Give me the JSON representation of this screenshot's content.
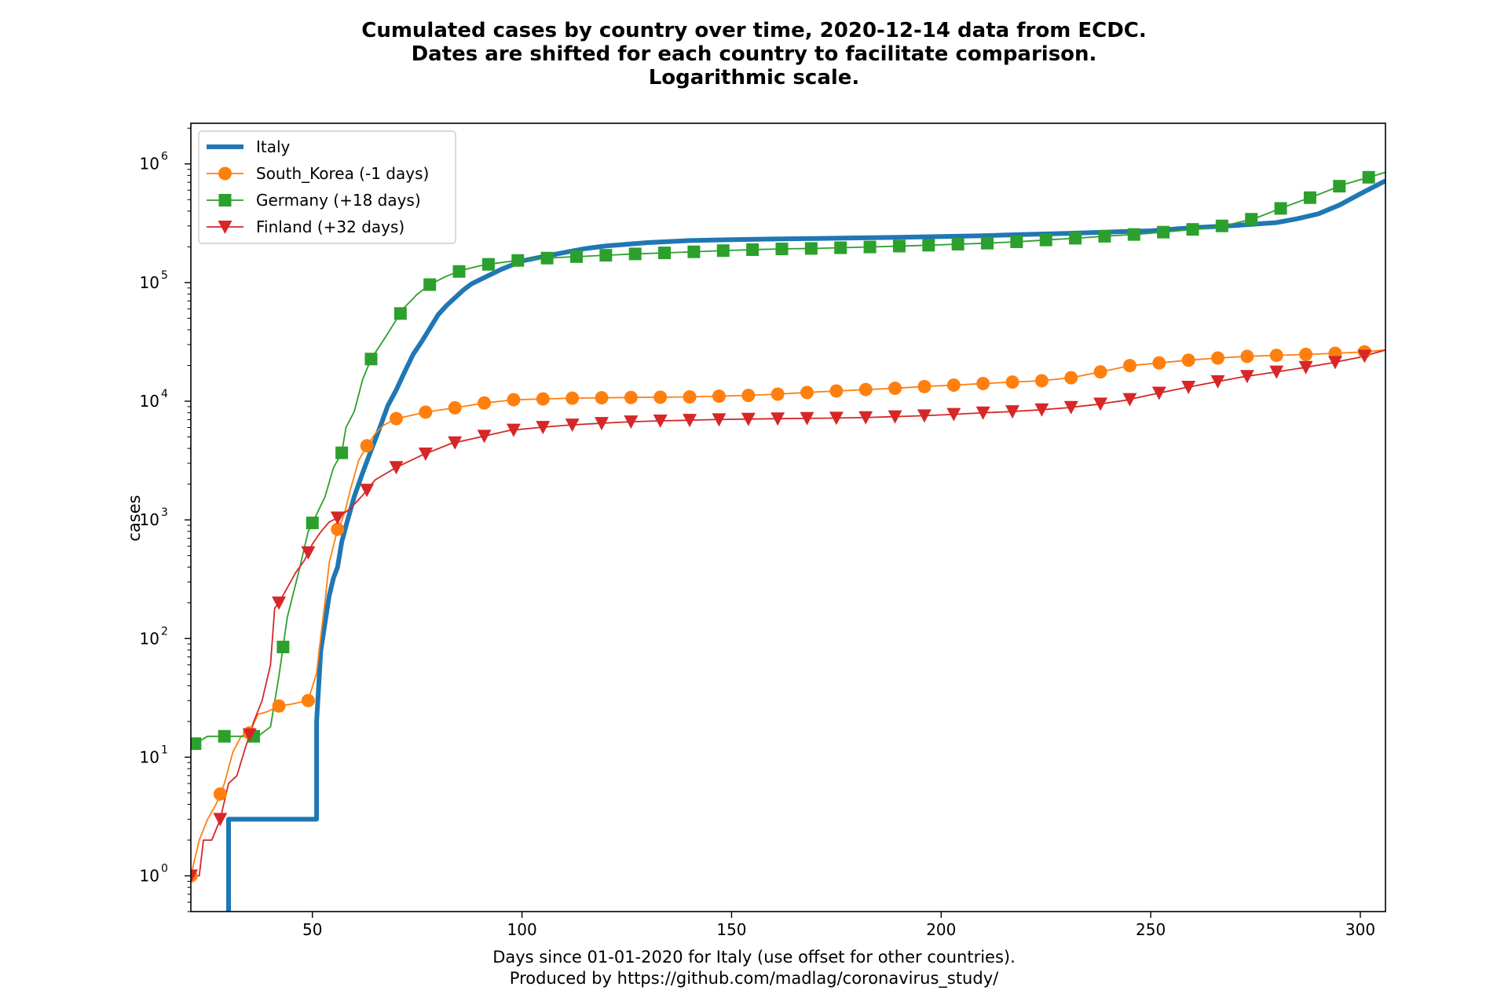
{
  "chart_data": {
    "type": "line",
    "title": "Cumulated cases by country over time, 2020-12-14 data from ECDC.",
    "subtitle": "Dates are shifted for each country to facilitate comparison.",
    "subtitle2": "Logarithmic scale.",
    "xlabel": "Days since 01-01-2020 for Italy (use offset for other countries).",
    "xlabel2": "Produced by https://github.com/madlag/coronavirus_study/",
    "ylabel": "cases",
    "yscale": "log",
    "xlim": [
      21,
      306
    ],
    "ylim": [
      0.5,
      2200000
    ],
    "xticks": [
      50,
      100,
      150,
      200,
      250,
      300
    ],
    "xtick_labels": [
      "50",
      "100",
      "150",
      "200",
      "250",
      "300"
    ],
    "yticks": [
      1,
      10,
      100,
      1000,
      10000,
      100000,
      1000000
    ],
    "ytick_labels": [
      [
        "10",
        "0"
      ],
      [
        "10",
        "1"
      ],
      [
        "10",
        "2"
      ],
      [
        "10",
        "3"
      ],
      [
        "10",
        "4"
      ],
      [
        "10",
        "5"
      ],
      [
        "10",
        "6"
      ]
    ],
    "grid": false,
    "legend_position": "top-left",
    "series": [
      {
        "name": "Italy",
        "color": "#1f77b4",
        "marker": "none",
        "x": [
          30,
          30,
          51,
          51,
          52,
          54,
          55,
          56,
          57,
          58,
          60,
          62,
          64,
          66,
          68,
          70,
          72,
          74,
          76,
          78,
          80,
          82,
          84,
          86,
          88,
          90,
          95,
          100,
          105,
          110,
          115,
          120,
          130,
          140,
          150,
          160,
          170,
          180,
          190,
          200,
          210,
          220,
          230,
          240,
          250,
          260,
          270,
          280,
          285,
          290,
          295,
          300,
          306
        ],
        "y": [
          0.5,
          3,
          3,
          20,
          79,
          229,
          322,
          400,
          650,
          888,
          1577,
          2502,
          3858,
          5883,
          9172,
          12462,
          17660,
          24747,
          31506,
          41035,
          53578,
          63927,
          74386,
          86498,
          97689,
          105792,
          128948,
          152271,
          165155,
          178972,
          192994,
          203591,
          217185,
          225886,
          230158,
          232997,
          235278,
          237828,
          240961,
          244624,
          248070,
          254235,
          259345,
          266853,
          272912,
          290000,
          302000,
          320000,
          345000,
          380000,
          450000,
          560000,
          720000
        ]
      },
      {
        "name": "South_Korea (-1 days)",
        "color": "#ff7f0e",
        "marker": "circle",
        "x": [
          21,
          23,
          25,
          27,
          29,
          31,
          33,
          35,
          37,
          39,
          42,
          45,
          49,
          51,
          52,
          53,
          54,
          55,
          56,
          57,
          58,
          59,
          60,
          61,
          63,
          65,
          67,
          70,
          73,
          77,
          84,
          91,
          98,
          105,
          112,
          119,
          126,
          133,
          140,
          147,
          154,
          161,
          168,
          175,
          182,
          189,
          196,
          203,
          210,
          217,
          224,
          231,
          238,
          245,
          252,
          259,
          266,
          273,
          280,
          287,
          294,
          301,
          306
        ],
        "y": [
          1,
          2,
          3,
          4,
          6,
          11,
          15,
          16,
          23,
          24,
          27,
          28,
          30,
          51,
          104,
          204,
          433,
          602,
          833,
          977,
          1261,
          1766,
          2337,
          3150,
          4212,
          5328,
          6284,
          7134,
          7513,
          8086,
          8799,
          9661,
          10284,
          10450,
          10613,
          10683,
          10752,
          10806,
          10874,
          11018,
          11190,
          11468,
          11852,
          12198,
          12535,
          12850,
          13293,
          13672,
          14092,
          14499,
          14873,
          15761,
          17665,
          19947,
          21010,
          22176,
          23106,
          23889,
          24353,
          24805,
          25333,
          26043,
          27000
        ]
      },
      {
        "name": "Germany (+18 days)",
        "color": "#2ca02c",
        "marker": "square",
        "x": [
          22,
          25,
          30,
          35,
          37,
          40,
          42,
          44,
          47,
          49,
          51,
          53,
          55,
          57,
          58,
          60,
          62,
          64,
          66,
          68,
          70,
          72,
          75,
          78,
          82,
          86,
          90,
          93,
          100,
          107,
          114,
          121,
          128,
          135,
          142,
          149,
          156,
          163,
          170,
          177,
          184,
          191,
          198,
          205,
          212,
          219,
          226,
          233,
          240,
          247,
          254,
          261,
          268,
          275,
          282,
          289,
          296,
          303,
          306
        ],
        "y": [
          13,
          15,
          15,
          15,
          15,
          18,
          48,
          150,
          400,
          800,
          1112,
          1565,
          2745,
          3675,
          6012,
          8198,
          15320,
          22672,
          29056,
          37323,
          48582,
          61913,
          79696,
          96092,
          113296,
          127854,
          138497,
          144387,
          155193,
          161703,
          166152,
          170508,
          174975,
          178281,
          182196,
          186461,
          189817,
          192480,
          194036,
          196944,
          199919,
          203324,
          206926,
          211281,
          215336,
          221413,
          229706,
          237583,
          246948,
          255366,
          267773,
          282730,
          303258,
          348557,
          435295,
          535000,
          670000,
          790000,
          850000
        ]
      },
      {
        "name": "Finland (+32 days)",
        "color": "#d62728",
        "marker": "triangle-down",
        "x": [
          21,
          23,
          24,
          26,
          28,
          30,
          32,
          34,
          36,
          38,
          40,
          41,
          42,
          44,
          46,
          48,
          50,
          52,
          54,
          56,
          59,
          62,
          65,
          70,
          76,
          83,
          90,
          97,
          104,
          111,
          118,
          125,
          132,
          139,
          146,
          153,
          160,
          167,
          174,
          181,
          188,
          195,
          202,
          209,
          216,
          223,
          230,
          237,
          244,
          251,
          258,
          265,
          272,
          279,
          286,
          293,
          300,
          306
        ],
        "y": [
          1,
          1,
          2,
          2,
          3,
          6,
          7,
          12,
          20,
          30,
          60,
          180,
          200,
          267,
          359,
          450,
          626,
          792,
          958,
          1041,
          1240,
          1615,
          2176,
          2769,
          3489,
          4395,
          4995,
          5673,
          6003,
          6286,
          6493,
          6692,
          6826,
          6911,
          7001,
          7064,
          7117,
          7167,
          7209,
          7273,
          7398,
          7532,
          7722,
          7958,
          8157,
          8430,
          8799,
          9379,
          10192,
          11542,
          12954,
          14437,
          16042,
          17444,
          19050,
          20973,
          23525,
          27000
        ]
      }
    ]
  }
}
